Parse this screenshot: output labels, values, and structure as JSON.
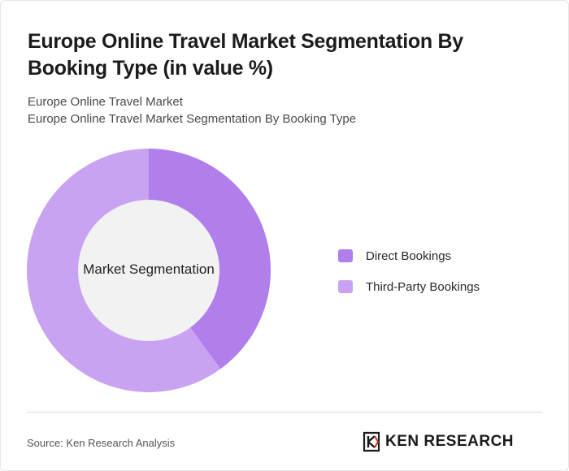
{
  "header": {
    "title": "Europe Online Travel Market Segmentation By Booking Type (in value %)",
    "subtitle_line1": "Europe Online Travel Market",
    "subtitle_line2": "Europe Online Travel Market Segmentation By Booking Type"
  },
  "chart_data": {
    "type": "pie",
    "center_label": "Market Segmentation",
    "legend_placement": "right",
    "slices": [
      {
        "name": "Direct Bookings",
        "value": 40,
        "color": "#b07fec"
      },
      {
        "name": "Third-Party Bookings",
        "value": 60,
        "color": "#c9a3f1"
      }
    ]
  },
  "footer": {
    "source": "Source: Ken Research Analysis",
    "logo_text": "KEN RESEARCH"
  }
}
